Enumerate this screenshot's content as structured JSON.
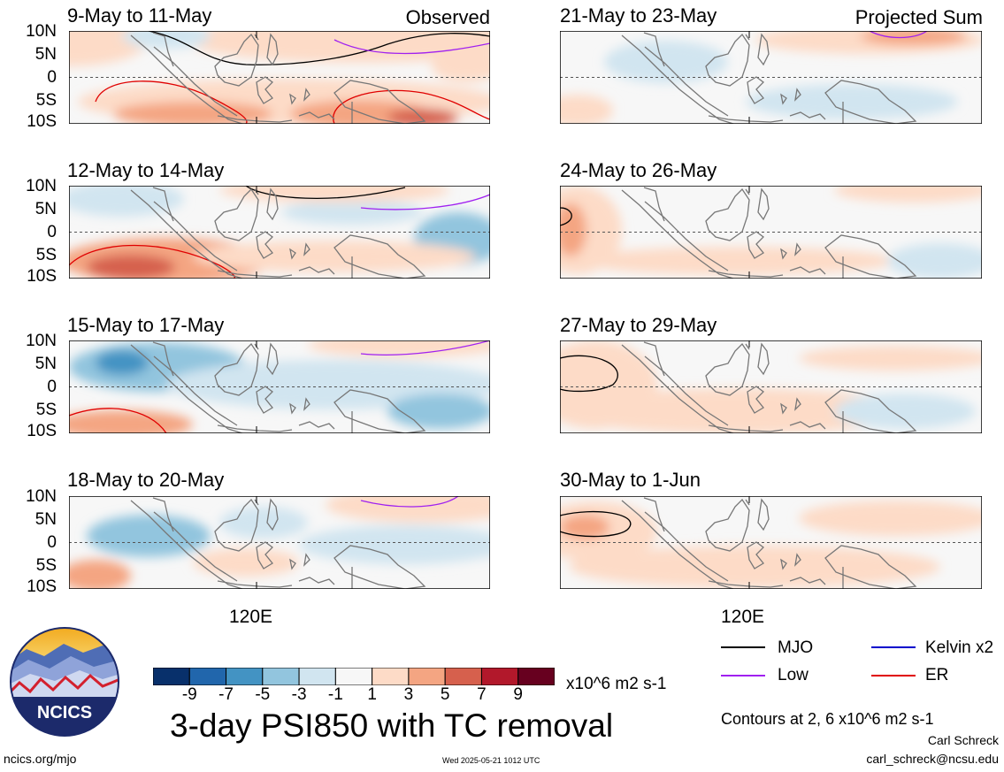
{
  "panels_left": [
    {
      "title": "9-May to 11-May",
      "tag": "Observed"
    },
    {
      "title": "12-May to 14-May",
      "tag": ""
    },
    {
      "title": "15-May to 17-May",
      "tag": ""
    },
    {
      "title": "18-May to 20-May",
      "tag": ""
    }
  ],
  "panels_right": [
    {
      "title": "21-May to 23-May",
      "tag": "Projected Sum"
    },
    {
      "title": "24-May to 26-May",
      "tag": ""
    },
    {
      "title": "27-May to 29-May",
      "tag": ""
    },
    {
      "title": "30-May to 1-Jun",
      "tag": ""
    }
  ],
  "lat_labels": [
    "10N",
    "5N",
    "0",
    "5S",
    "10S"
  ],
  "lon_label": "120E",
  "colorbar": {
    "ticks": [
      "-9",
      "-7",
      "-5",
      "-3",
      "-1",
      "1",
      "3",
      "5",
      "7",
      "9"
    ],
    "units": "x10^6 m2 s-1",
    "colors": [
      "#08306b",
      "#2166ac",
      "#4393c3",
      "#92c5de",
      "#d1e5f0",
      "#f7f7f7",
      "#fddbc7",
      "#f4a582",
      "#d6604d",
      "#b2182b",
      "#67001f"
    ]
  },
  "title": "3-day PSI850 with TC removal",
  "legend": [
    {
      "label": "MJO",
      "color": "#000000"
    },
    {
      "label": "Kelvin x2",
      "color": "#0000cc"
    },
    {
      "label": "Low",
      "color": "#a020f0"
    },
    {
      "label": "ER",
      "color": "#e00000"
    }
  ],
  "contours_note": "Contours at 2, 6 x10^6 m2 s-1",
  "author": "Carl Schreck",
  "email": "carl_schreck@ncsu.edu",
  "site": "ncics.org/mjo",
  "timestamp": "Wed 2025-05-21 1012 UTC",
  "logo_text": "NCICS"
}
